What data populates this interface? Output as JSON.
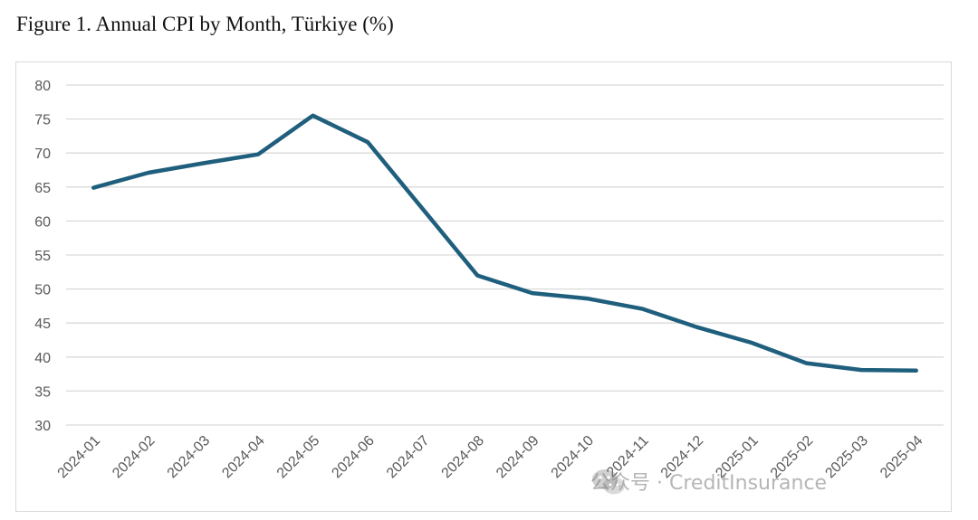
{
  "title": "Figure 1. Annual CPI by Month, Türkiye (%)",
  "watermark": {
    "icon": "wechat-icon",
    "text": "公众号 · CreditInsurance"
  },
  "colors": {
    "line": "#1f5f7d",
    "grid": "#d9d9d9",
    "tick_text": "#595959"
  },
  "chart_data": {
    "type": "line",
    "title": "Figure 1. Annual CPI by Month, Türkiye (%)",
    "xlabel": "",
    "ylabel": "",
    "categories": [
      "2024-01",
      "2024-02",
      "2024-03",
      "2024-04",
      "2024-05",
      "2024-06",
      "2024-07",
      "2024-08",
      "2024-09",
      "2024-10",
      "2024-11",
      "2024-12",
      "2025-01",
      "2025-02",
      "2025-03",
      "2025-04"
    ],
    "series": [
      {
        "values": [
          64.9,
          67.1,
          68.5,
          69.8,
          75.5,
          71.6,
          61.8,
          52.0,
          49.4,
          48.6,
          47.1,
          44.4,
          42.1,
          39.1,
          38.1,
          38.0
        ]
      }
    ],
    "ylim": [
      30,
      80
    ],
    "yticks": [
      30,
      35,
      40,
      45,
      50,
      55,
      60,
      65,
      70,
      75,
      80
    ],
    "grid": "horizontal",
    "legend": "none"
  }
}
